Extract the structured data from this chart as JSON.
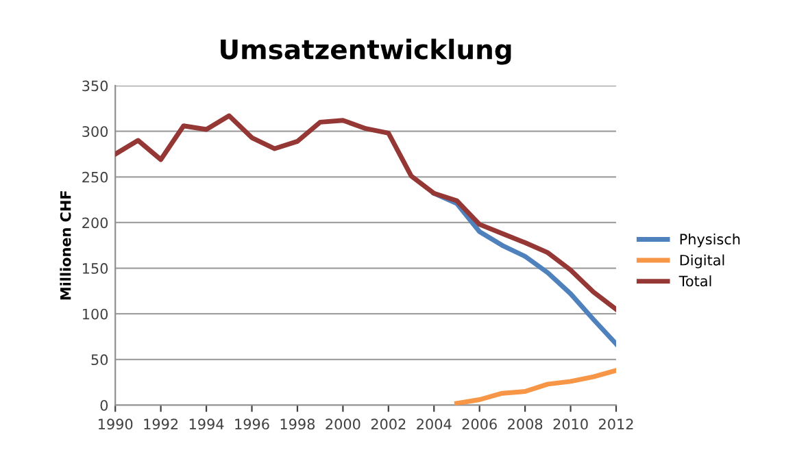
{
  "chart_data": {
    "type": "line",
    "title": "Umsatzentwicklung",
    "ylabel": "Millionen CHF",
    "x": [
      1990,
      1991,
      1992,
      1993,
      1994,
      1995,
      1996,
      1997,
      1998,
      1999,
      2000,
      2001,
      2002,
      2003,
      2004,
      2005,
      2006,
      2007,
      2008,
      2009,
      2010,
      2011,
      2012
    ],
    "series": [
      {
        "name": "Physisch",
        "color": "#4f81bd",
        "values": [
          null,
          null,
          null,
          null,
          null,
          null,
          null,
          null,
          null,
          null,
          null,
          null,
          null,
          null,
          232,
          221,
          190,
          175,
          163,
          145,
          122,
          94,
          67
        ]
      },
      {
        "name": "Digital",
        "color": "#f79646",
        "x": [
          2005,
          2006,
          2007,
          2008,
          2009,
          2010,
          2011,
          2012
        ],
        "values": [
          2,
          6,
          13,
          15,
          23,
          26,
          31,
          38
        ]
      },
      {
        "name": "Total",
        "color": "#953735",
        "values": [
          275,
          290,
          269,
          306,
          302,
          317,
          293,
          281,
          289,
          310,
          312,
          303,
          298,
          251,
          232,
          224,
          198,
          188,
          178,
          167,
          148,
          124,
          105
        ]
      }
    ],
    "xlim": [
      1990,
      2012
    ],
    "xticks": [
      1990,
      1992,
      1994,
      1996,
      1998,
      2000,
      2002,
      2004,
      2006,
      2008,
      2010,
      2012
    ],
    "ylim": [
      0,
      350
    ],
    "yticks": [
      0,
      50,
      100,
      150,
      200,
      250,
      300,
      350
    ],
    "grid": "y",
    "legend": "right",
    "marker": "none",
    "line_style": "solid"
  }
}
